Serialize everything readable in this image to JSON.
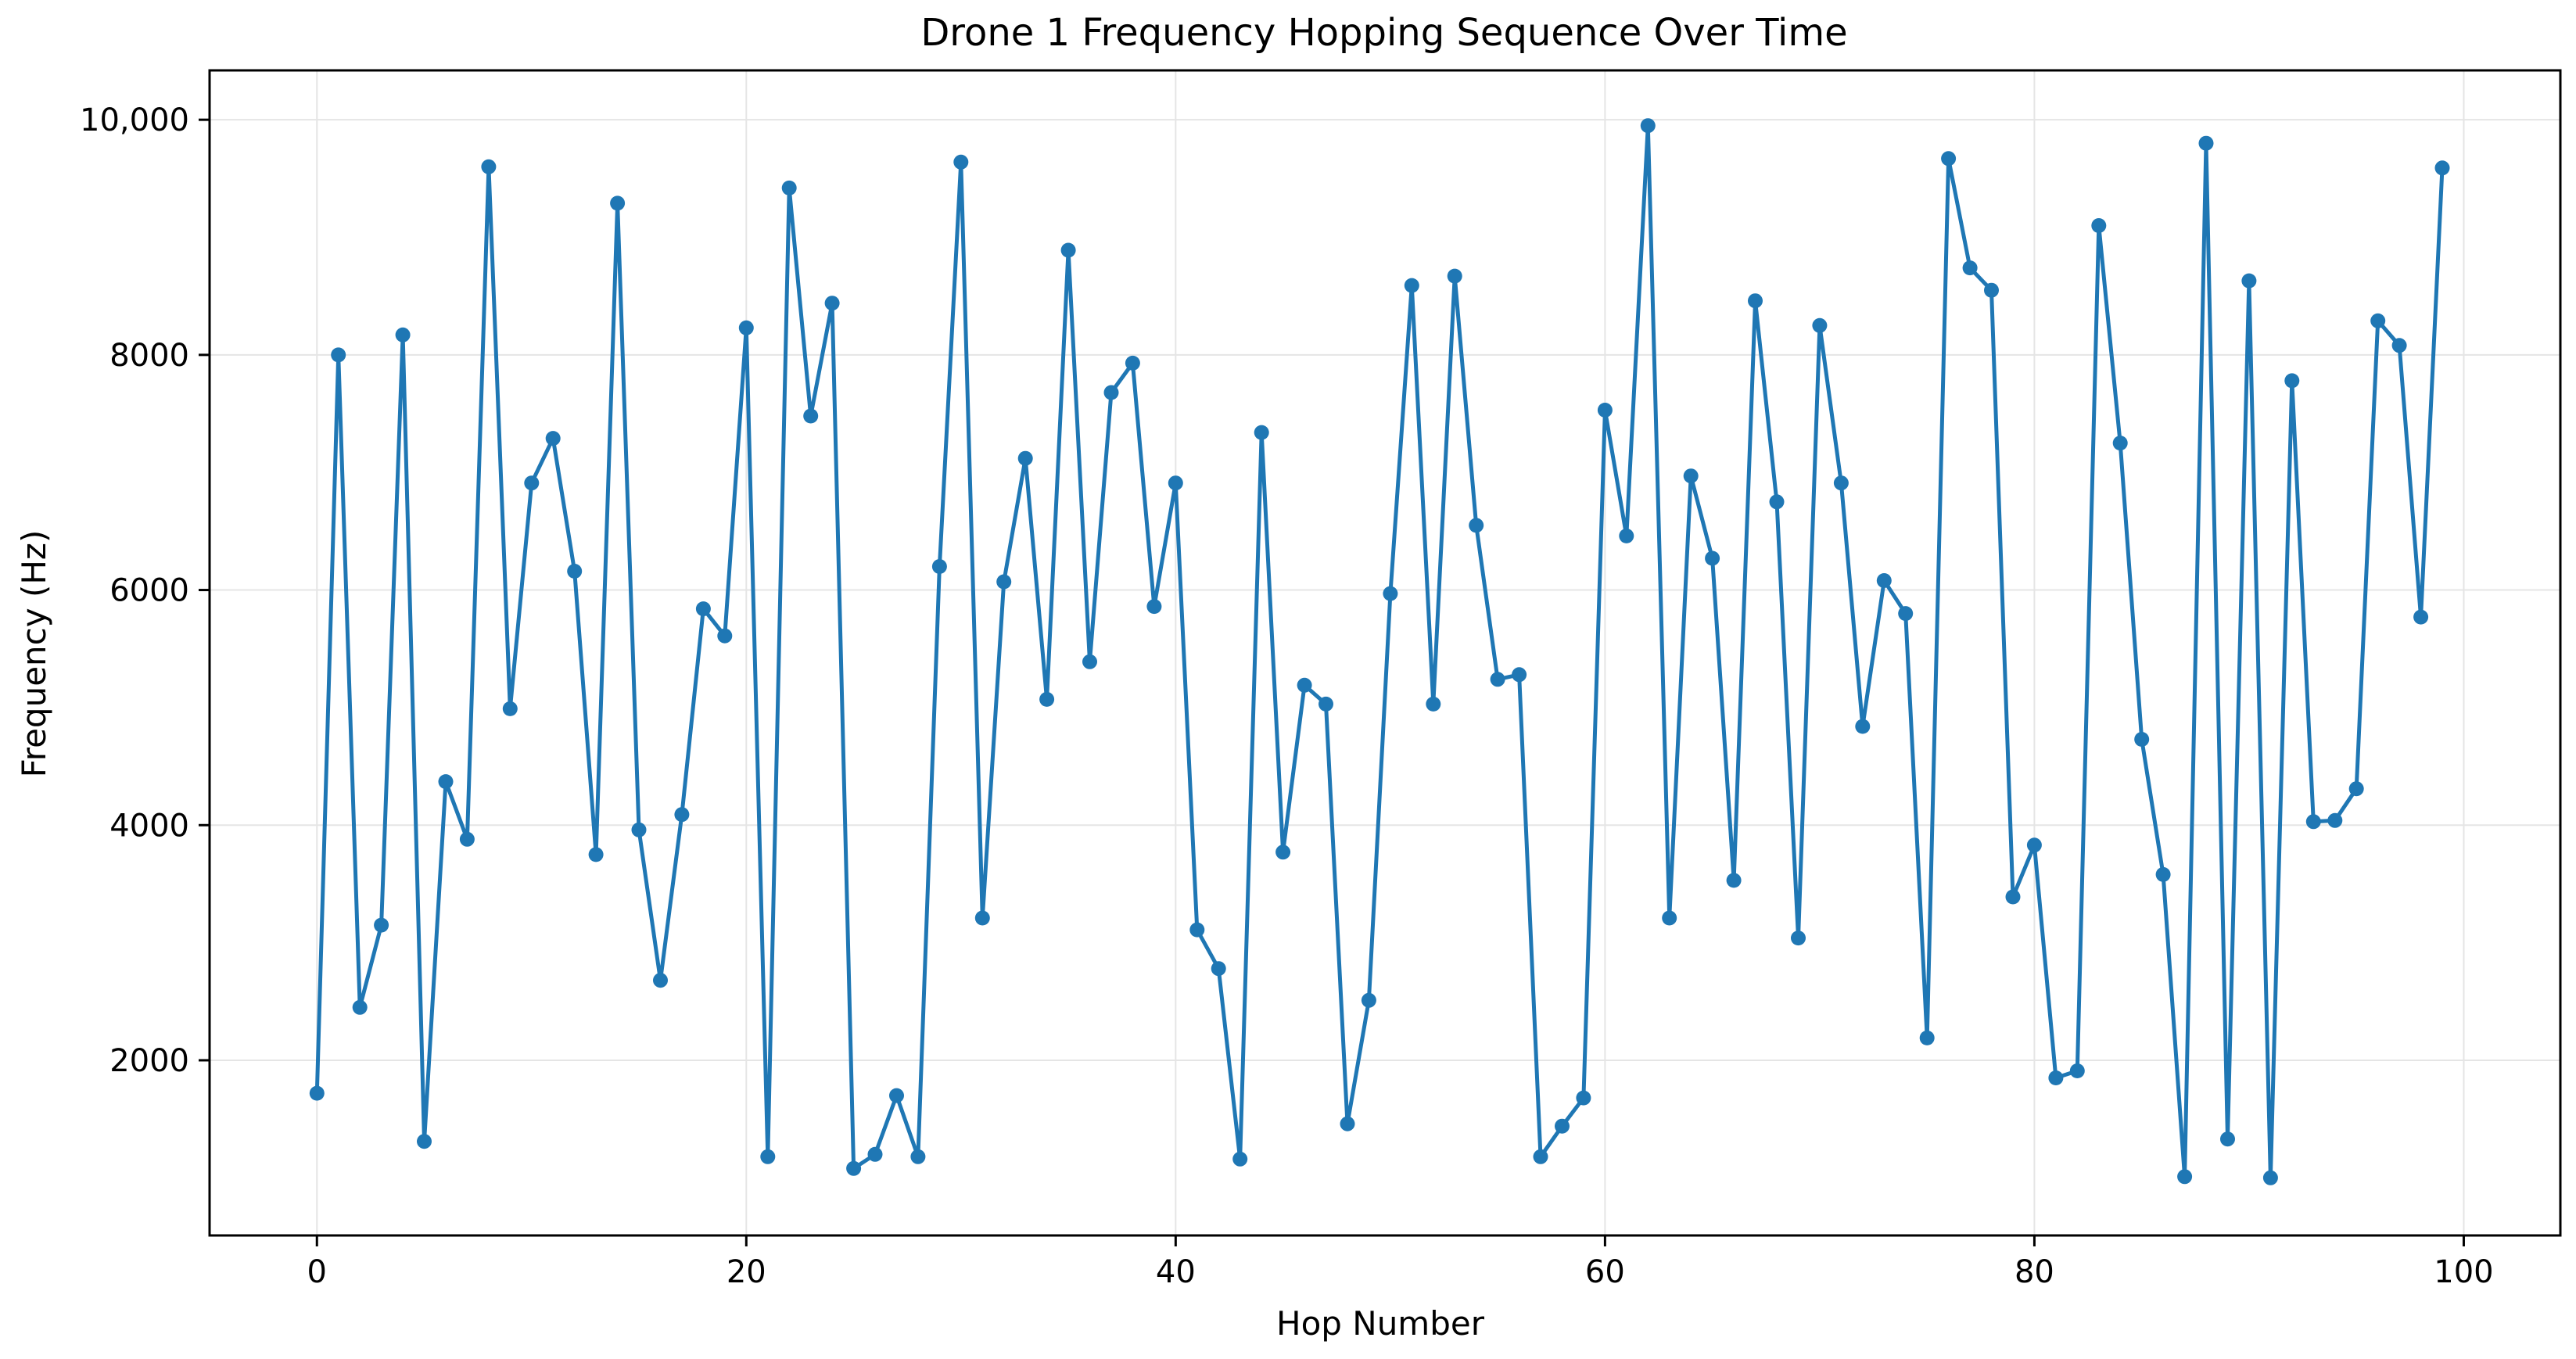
{
  "chart_data": {
    "type": "line",
    "title": "Drone 1 Frequency Hopping Sequence Over Time",
    "xlabel": "Hop Number",
    "ylabel": "Frequency (Hz)",
    "xlim": [
      -5,
      104.5
    ],
    "ylim": [
      510,
      10420
    ],
    "grid": true,
    "x_ticks": [
      0,
      20,
      40,
      60,
      80,
      100
    ],
    "x_tick_labels": [
      "0",
      "20",
      "40",
      "60",
      "80",
      "100"
    ],
    "y_ticks": [
      2000,
      4000,
      6000,
      8000,
      10000
    ],
    "y_tick_labels": [
      "2000",
      "4000",
      "6000",
      "8000",
      "10,000"
    ],
    "colors": {
      "line": "#1f77b4",
      "grid": "#e5e5e5",
      "axes": "#000000"
    },
    "series": [
      {
        "name": "Drone 1",
        "x": [
          0,
          1,
          2,
          3,
          4,
          5,
          6,
          7,
          8,
          9,
          10,
          11,
          12,
          13,
          14,
          15,
          16,
          17,
          18,
          19,
          20,
          21,
          22,
          23,
          24,
          25,
          26,
          27,
          28,
          29,
          30,
          31,
          32,
          33,
          34,
          35,
          36,
          37,
          38,
          39,
          40,
          41,
          42,
          43,
          44,
          45,
          46,
          47,
          48,
          49,
          50,
          51,
          52,
          53,
          54,
          55,
          56,
          57,
          58,
          59,
          60,
          61,
          62,
          63,
          64,
          65,
          66,
          67,
          68,
          69,
          70,
          71,
          72,
          73,
          74,
          75,
          76,
          77,
          78,
          79,
          80,
          81,
          82,
          83,
          84,
          85,
          86,
          87,
          88,
          89,
          90,
          91,
          92,
          93,
          94,
          95,
          96,
          97,
          98,
          99
        ],
        "values": [
          1720,
          8000,
          2450,
          3150,
          8170,
          1310,
          4370,
          3880,
          9600,
          4990,
          6910,
          7290,
          6160,
          3750,
          9290,
          3960,
          2680,
          4090,
          5840,
          5610,
          8230,
          1180,
          9420,
          7480,
          8440,
          1080,
          1200,
          1700,
          1180,
          6200,
          9640,
          3210,
          6070,
          7120,
          5070,
          8890,
          5390,
          7680,
          7930,
          5860,
          6910,
          3110,
          2780,
          1160,
          7340,
          3770,
          5190,
          5030,
          1460,
          2510,
          5970,
          8590,
          5030,
          8670,
          6550,
          5240,
          5280,
          1180,
          1440,
          1680,
          7530,
          6460,
          9950,
          3210,
          6970,
          6270,
          3530,
          8460,
          6750,
          3040,
          8250,
          6910,
          4840,
          6080,
          5800,
          2190,
          9670,
          8740,
          8550,
          3390,
          3830,
          1850,
          1910,
          9100,
          7250,
          4730,
          3580,
          1010,
          9800,
          1330,
          8630,
          1000,
          7780,
          4030,
          4040,
          4310,
          8290,
          8080,
          5770,
          9590
        ]
      }
    ]
  }
}
